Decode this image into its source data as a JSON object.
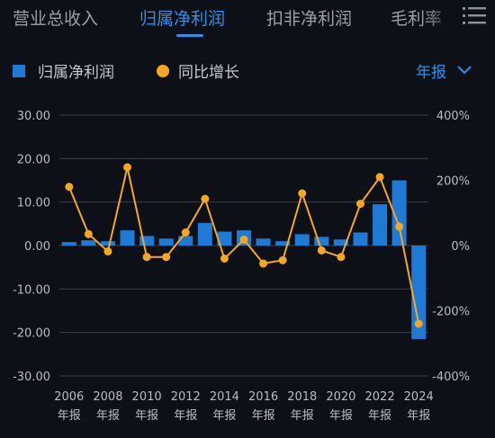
{
  "tabs": [
    {
      "label": "营业总收入"
    },
    {
      "label": "归属净利润"
    },
    {
      "label": "扣非净利润"
    },
    {
      "label": "毛利率"
    }
  ],
  "legend": {
    "bar_label": "归属净利润",
    "line_label": "同比增长"
  },
  "period_selector": {
    "label": "年报"
  },
  "colors": {
    "bar": "#1f7ad6",
    "line": "#f5a623",
    "accent": "#2f8fe6",
    "grid": "#3a3f47"
  },
  "chart_data": {
    "type": "bar+line",
    "categories": [
      "2006",
      "2007",
      "2008",
      "2009",
      "2010",
      "2011",
      "2012",
      "2013",
      "2014",
      "2015",
      "2016",
      "2017",
      "2018",
      "2019",
      "2020",
      "2021",
      "2022",
      "2023",
      "2024"
    ],
    "x_tick_labels": [
      "2006",
      "2008",
      "2010",
      "2012",
      "2014",
      "2016",
      "2018",
      "2020",
      "2022",
      "2024"
    ],
    "x_tick_sublabel": "年报",
    "series": [
      {
        "name": "归属净利润",
        "type": "bar",
        "axis": "left",
        "values": [
          0.8,
          1.2,
          1.0,
          3.5,
          2.2,
          1.6,
          2.2,
          5.2,
          3.2,
          3.5,
          1.6,
          1.0,
          2.6,
          2.0,
          1.4,
          3.0,
          9.5,
          15.0,
          -21.5
        ]
      },
      {
        "name": "同比增长",
        "type": "line",
        "axis": "right",
        "values": [
          180,
          35,
          -18,
          240,
          -35,
          -35,
          40,
          143,
          -40,
          18,
          -55,
          -45,
          160,
          -15,
          -35,
          128,
          210,
          58,
          -240
        ]
      }
    ],
    "y_left": {
      "ticks": [
        "30.00",
        "20.00",
        "10.00",
        "0.00",
        "-10.00",
        "-20.00",
        "-30.00"
      ],
      "range": [
        -30,
        30
      ]
    },
    "y_right": {
      "ticks": [
        "400%",
        "200%",
        "0%",
        "-200%",
        "-400%"
      ],
      "range": [
        -400,
        400
      ]
    },
    "grid": true
  }
}
